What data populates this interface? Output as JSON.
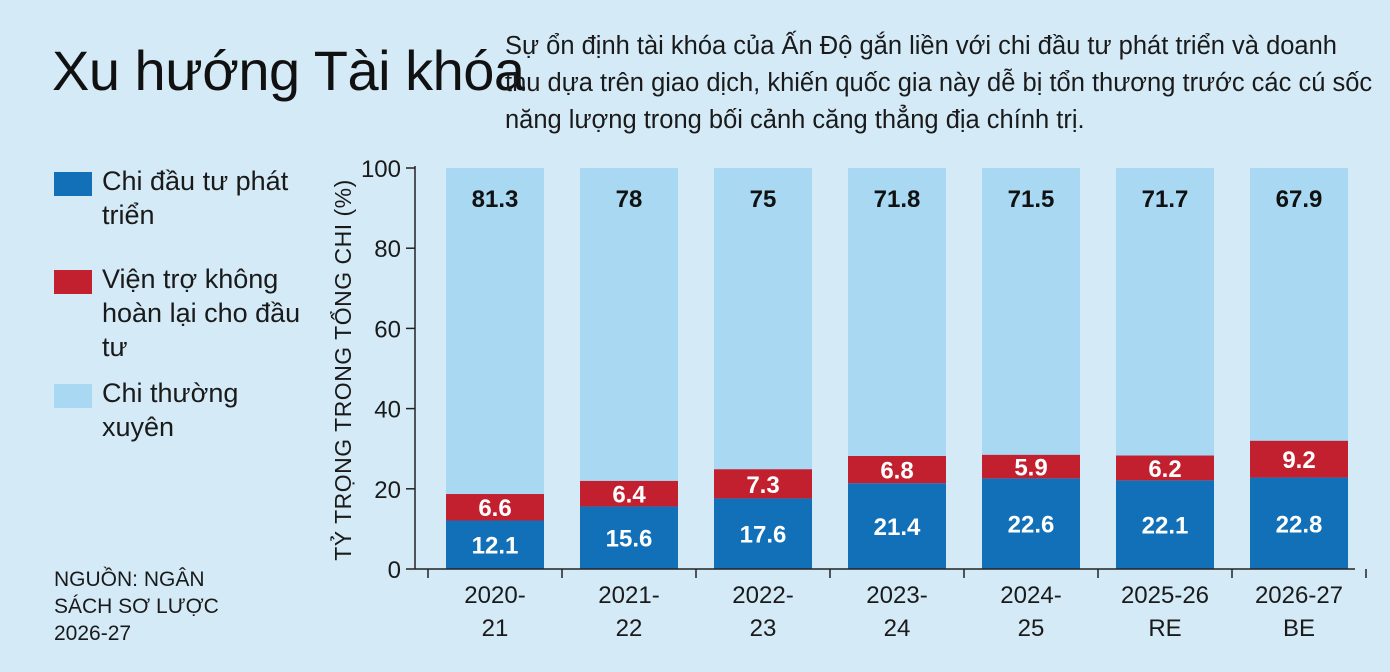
{
  "title": "Xu hướng Tài khóa",
  "subtitle": "Sự ổn định tài khóa của Ấn Độ gắn liền với chi đầu tư phát triển và doanh thu dựa trên giao dịch, khiến quốc gia này dễ bị tổn thương trước các cú sốc năng lượng trong bối cảnh căng thẳng địa chính trị.",
  "source": "NGUỒN: NGÂN SÁCH SƠ LƯỢC 2026-27",
  "colors": {
    "capex": "#1170b8",
    "grants": "#c21f2f",
    "revenue": "#a8d8f2",
    "background": "#d4eaf7"
  },
  "chart_data": {
    "type": "bar",
    "stacked": true,
    "title": "",
    "xlabel": "",
    "ylabel": "TỶ TRỌNG TRONG TỔNG CHI (%)",
    "ylim": [
      0,
      100
    ],
    "yticks": [
      0,
      20,
      40,
      60,
      80,
      100
    ],
    "grid": false,
    "legend_position": "left",
    "categories": [
      [
        "2020-",
        "21"
      ],
      [
        "2021-",
        "22"
      ],
      [
        "2022-",
        "23"
      ],
      [
        "2023-",
        "24"
      ],
      [
        "2024-",
        "25"
      ],
      [
        "2025-26",
        "RE"
      ],
      [
        "2026-27",
        "BE"
      ]
    ],
    "series": [
      {
        "name": "Chi đầu tư phát triển",
        "color": "#1170b8",
        "label_color": "#ffffff",
        "values": [
          12.1,
          15.6,
          17.6,
          21.4,
          22.6,
          22.1,
          22.8
        ],
        "labels": [
          "12.1",
          "15.6",
          "17.6",
          "21.4",
          "22.6",
          "22.1",
          "22.8"
        ]
      },
      {
        "name": "Viện trợ không hoàn lại cho đầu tư",
        "color": "#c21f2f",
        "label_color": "#ffffff",
        "values": [
          6.6,
          6.4,
          7.3,
          6.8,
          5.9,
          6.2,
          9.2
        ],
        "labels": [
          "6.6",
          "6.4",
          "7.3",
          "6.8",
          "5.9",
          "6.2",
          "9.2"
        ]
      },
      {
        "name": "Chi thường xuyên",
        "color": "#a8d8f2",
        "label_color": "#111111",
        "values": [
          81.3,
          78,
          75,
          71.8,
          71.5,
          71.7,
          67.9
        ],
        "labels": [
          "81.3",
          "78",
          "75",
          "71.8",
          "71.5",
          "71.7",
          "67.9"
        ]
      }
    ]
  }
}
